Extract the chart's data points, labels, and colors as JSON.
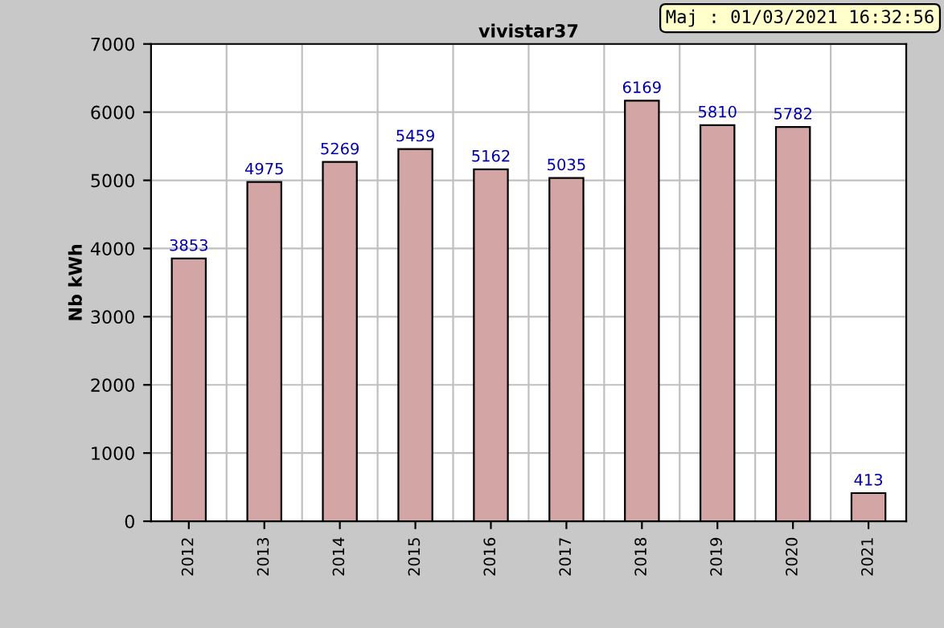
{
  "chart_data": {
    "type": "bar",
    "title": "vivistar37",
    "ylabel": "Nb kWh",
    "categories": [
      "2012",
      "2013",
      "2014",
      "2015",
      "2016",
      "2017",
      "2018",
      "2019",
      "2020",
      "2021"
    ],
    "values": [
      3853,
      4975,
      5269,
      5459,
      5162,
      5035,
      6169,
      5810,
      5782,
      413
    ],
    "color": "#d4a5a5",
    "ylim": [
      0,
      7000
    ],
    "yticks": [
      0,
      1000,
      2000,
      3000,
      4000,
      5000,
      6000,
      7000
    ],
    "grid": true,
    "data_labels": true,
    "annotations": [
      "Maj : 01/03/2021 16:32:56"
    ]
  }
}
